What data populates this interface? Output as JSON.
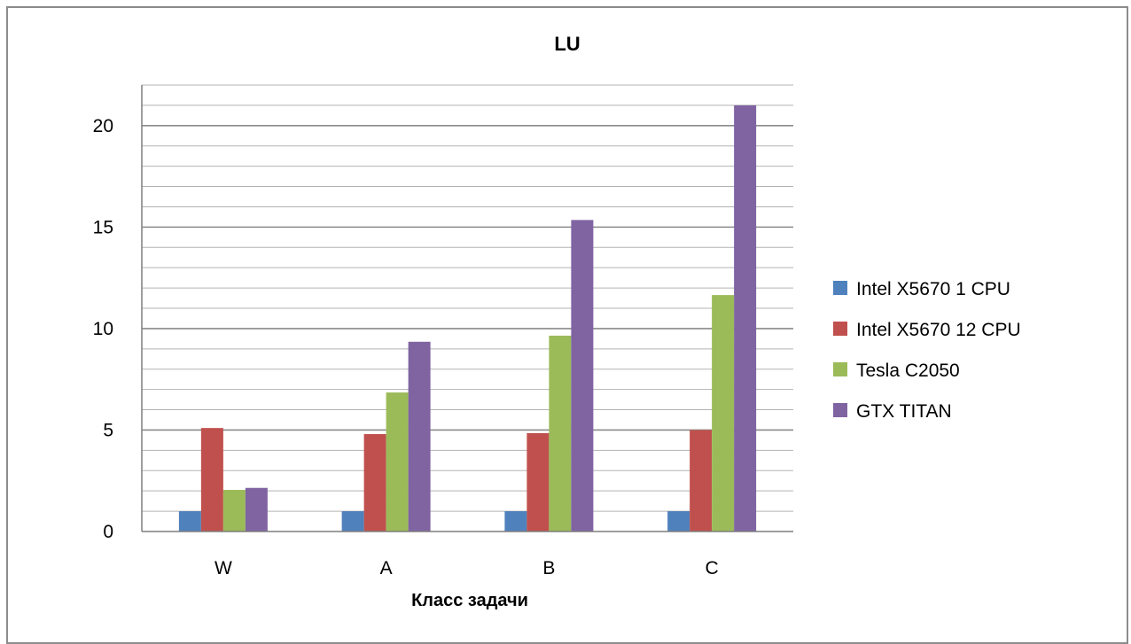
{
  "chart_data": {
    "type": "bar",
    "title": "LU",
    "xlabel": "Класс задачи",
    "ylabel": "",
    "categories": [
      "W",
      "A",
      "B",
      "C"
    ],
    "ylim": [
      0,
      22
    ],
    "yticks": [
      0,
      5,
      10,
      15,
      20
    ],
    "minor_grid_step": 1,
    "grid": true,
    "legend_position": "right",
    "series": [
      {
        "name": "Intel X5670 1 CPU",
        "color": "#4f81bd",
        "values": [
          1,
          1,
          1,
          1
        ]
      },
      {
        "name": "Intel X5670 12 CPU",
        "color": "#c0504d",
        "values": [
          5.1,
          4.8,
          4.85,
          5.0
        ]
      },
      {
        "name": "Tesla C2050",
        "color": "#9bbb59",
        "values": [
          2.05,
          6.85,
          9.65,
          11.65
        ]
      },
      {
        "name": "GTX TITAN",
        "color": "#8064a2",
        "values": [
          2.15,
          9.35,
          15.35,
          21.0
        ]
      }
    ]
  }
}
